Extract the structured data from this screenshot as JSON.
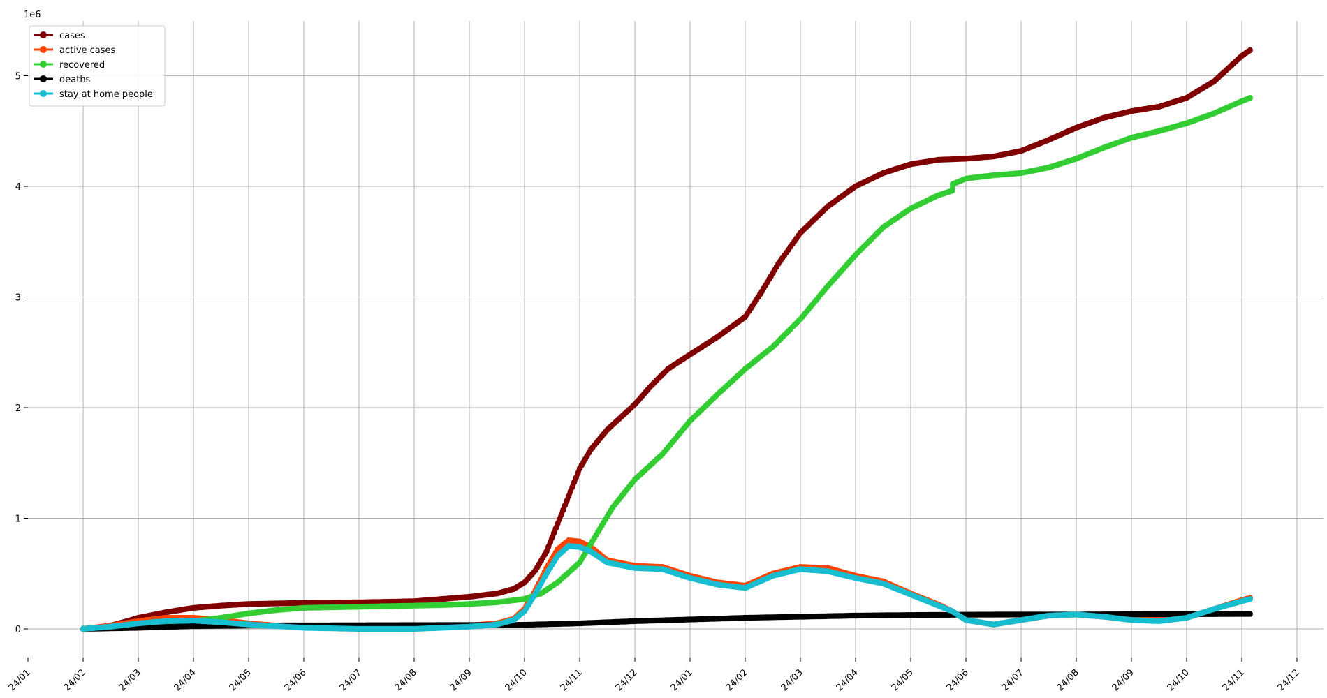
{
  "chart_data": {
    "type": "line",
    "y_offset_label": "1e6",
    "x_tick_labels": [
      "24/01",
      "24/02",
      "24/03",
      "24/04",
      "24/05",
      "24/06",
      "24/07",
      "24/08",
      "24/09",
      "24/10",
      "24/11",
      "24/12",
      "24/01",
      "24/02",
      "24/03",
      "24/04",
      "24/05",
      "24/06",
      "24/07",
      "24/08",
      "24/09",
      "24/10",
      "24/11",
      "24/12"
    ],
    "y_ticks": [
      0,
      1,
      2,
      3,
      4,
      5
    ],
    "ylim": [
      -0.25,
      5.55
    ],
    "grid": true,
    "legend_position": "top-left",
    "series": [
      {
        "name": "cases",
        "color": "#800000",
        "points": [
          [
            1,
            0.0
          ],
          [
            1.2,
            0.01
          ],
          [
            1.5,
            0.03
          ],
          [
            1.8,
            0.07
          ],
          [
            2,
            0.1
          ],
          [
            2.5,
            0.15
          ],
          [
            3,
            0.19
          ],
          [
            3.5,
            0.21
          ],
          [
            4,
            0.225
          ],
          [
            4.5,
            0.23
          ],
          [
            5,
            0.235
          ],
          [
            6,
            0.24
          ],
          [
            7,
            0.25
          ],
          [
            7.5,
            0.27
          ],
          [
            8,
            0.29
          ],
          [
            8.5,
            0.32
          ],
          [
            8.8,
            0.36
          ],
          [
            9,
            0.42
          ],
          [
            9.2,
            0.53
          ],
          [
            9.4,
            0.7
          ],
          [
            9.6,
            0.95
          ],
          [
            9.8,
            1.2
          ],
          [
            10,
            1.45
          ],
          [
            10.2,
            1.62
          ],
          [
            10.5,
            1.8
          ],
          [
            11,
            2.03
          ],
          [
            11.3,
            2.2
          ],
          [
            11.6,
            2.35
          ],
          [
            12,
            2.48
          ],
          [
            12.5,
            2.64
          ],
          [
            13,
            2.82
          ],
          [
            13.3,
            3.05
          ],
          [
            13.6,
            3.3
          ],
          [
            14,
            3.58
          ],
          [
            14.5,
            3.82
          ],
          [
            15,
            4.0
          ],
          [
            15.5,
            4.12
          ],
          [
            16,
            4.2
          ],
          [
            16.5,
            4.24
          ],
          [
            17,
            4.25
          ],
          [
            17.5,
            4.27
          ],
          [
            18,
            4.32
          ],
          [
            18.5,
            4.42
          ],
          [
            19,
            4.53
          ],
          [
            19.5,
            4.62
          ],
          [
            20,
            4.68
          ],
          [
            20.5,
            4.72
          ],
          [
            21,
            4.8
          ],
          [
            21.5,
            4.95
          ],
          [
            22,
            5.18
          ],
          [
            22.15,
            5.23
          ]
        ]
      },
      {
        "name": "active cases",
        "color": "#ff4500",
        "points": [
          [
            1,
            0.0
          ],
          [
            1.5,
            0.03
          ],
          [
            2,
            0.07
          ],
          [
            2.5,
            0.1
          ],
          [
            3,
            0.1
          ],
          [
            3.5,
            0.08
          ],
          [
            4,
            0.05
          ],
          [
            4.5,
            0.03
          ],
          [
            5,
            0.02
          ],
          [
            6,
            0.01
          ],
          [
            7,
            0.01
          ],
          [
            7.5,
            0.02
          ],
          [
            8,
            0.03
          ],
          [
            8.5,
            0.05
          ],
          [
            8.8,
            0.09
          ],
          [
            9,
            0.18
          ],
          [
            9.2,
            0.35
          ],
          [
            9.4,
            0.55
          ],
          [
            9.6,
            0.72
          ],
          [
            9.8,
            0.8
          ],
          [
            10,
            0.79
          ],
          [
            10.2,
            0.74
          ],
          [
            10.5,
            0.62
          ],
          [
            11,
            0.57
          ],
          [
            11.5,
            0.56
          ],
          [
            12,
            0.48
          ],
          [
            12.5,
            0.42
          ],
          [
            13,
            0.39
          ],
          [
            13.5,
            0.5
          ],
          [
            14,
            0.56
          ],
          [
            14.5,
            0.55
          ],
          [
            15,
            0.48
          ],
          [
            15.5,
            0.43
          ],
          [
            16,
            0.32
          ],
          [
            16.5,
            0.22
          ],
          [
            16.75,
            0.16
          ],
          [
            17,
            0.08
          ],
          [
            17.5,
            0.04
          ],
          [
            18,
            0.08
          ],
          [
            18.5,
            0.12
          ],
          [
            19,
            0.13
          ],
          [
            19.5,
            0.11
          ],
          [
            20,
            0.09
          ],
          [
            20.5,
            0.08
          ],
          [
            21,
            0.1
          ],
          [
            21.5,
            0.18
          ],
          [
            22,
            0.26
          ],
          [
            22.15,
            0.28
          ]
        ]
      },
      {
        "name": "recovered",
        "color": "#32cd32",
        "points": [
          [
            1,
            0.0
          ],
          [
            1.5,
            0.02
          ],
          [
            2,
            0.04
          ],
          [
            3,
            0.07
          ],
          [
            3.5,
            0.1
          ],
          [
            4,
            0.14
          ],
          [
            4.5,
            0.17
          ],
          [
            5,
            0.19
          ],
          [
            6,
            0.2
          ],
          [
            7,
            0.21
          ],
          [
            7.5,
            0.215
          ],
          [
            8,
            0.225
          ],
          [
            8.5,
            0.24
          ],
          [
            9,
            0.27
          ],
          [
            9.3,
            0.32
          ],
          [
            9.6,
            0.42
          ],
          [
            10,
            0.6
          ],
          [
            10.3,
            0.85
          ],
          [
            10.6,
            1.1
          ],
          [
            11,
            1.35
          ],
          [
            11.5,
            1.58
          ],
          [
            12,
            1.88
          ],
          [
            12.5,
            2.12
          ],
          [
            13,
            2.35
          ],
          [
            13.5,
            2.55
          ],
          [
            14,
            2.8
          ],
          [
            14.5,
            3.1
          ],
          [
            15,
            3.38
          ],
          [
            15.5,
            3.63
          ],
          [
            16,
            3.8
          ],
          [
            16.5,
            3.92
          ],
          [
            16.75,
            3.96
          ],
          [
            16.76,
            4.02
          ],
          [
            17,
            4.07
          ],
          [
            17.5,
            4.1
          ],
          [
            18,
            4.12
          ],
          [
            18.5,
            4.17
          ],
          [
            19,
            4.25
          ],
          [
            19.5,
            4.35
          ],
          [
            20,
            4.44
          ],
          [
            20.5,
            4.5
          ],
          [
            21,
            4.57
          ],
          [
            21.5,
            4.66
          ],
          [
            22,
            4.77
          ],
          [
            22.15,
            4.8
          ]
        ]
      },
      {
        "name": "deaths",
        "color": "#000000",
        "points": [
          [
            1,
            0.0
          ],
          [
            1.5,
            0.005
          ],
          [
            2,
            0.01
          ],
          [
            3,
            0.025
          ],
          [
            4,
            0.03
          ],
          [
            5,
            0.032
          ],
          [
            6,
            0.033
          ],
          [
            7,
            0.034
          ],
          [
            8,
            0.035
          ],
          [
            9,
            0.037
          ],
          [
            10,
            0.05
          ],
          [
            10.5,
            0.06
          ],
          [
            11,
            0.07
          ],
          [
            12,
            0.085
          ],
          [
            13,
            0.1
          ],
          [
            14,
            0.11
          ],
          [
            15,
            0.12
          ],
          [
            16,
            0.125
          ],
          [
            17,
            0.128
          ],
          [
            18,
            0.13
          ],
          [
            19,
            0.13
          ],
          [
            20,
            0.132
          ],
          [
            21,
            0.133
          ],
          [
            22,
            0.135
          ],
          [
            22.15,
            0.135
          ]
        ]
      },
      {
        "name": "stay at home people",
        "color": "#17becf",
        "points": [
          [
            1,
            0.0
          ],
          [
            1.5,
            0.02
          ],
          [
            2,
            0.05
          ],
          [
            2.5,
            0.07
          ],
          [
            3,
            0.075
          ],
          [
            3.5,
            0.06
          ],
          [
            4,
            0.04
          ],
          [
            4.5,
            0.025
          ],
          [
            5,
            0.01
          ],
          [
            6,
            0.0
          ],
          [
            7,
            0.0
          ],
          [
            7.5,
            0.01
          ],
          [
            8,
            0.02
          ],
          [
            8.5,
            0.04
          ],
          [
            8.8,
            0.08
          ],
          [
            9,
            0.16
          ],
          [
            9.2,
            0.32
          ],
          [
            9.4,
            0.5
          ],
          [
            9.6,
            0.66
          ],
          [
            9.8,
            0.75
          ],
          [
            10,
            0.74
          ],
          [
            10.2,
            0.7
          ],
          [
            10.5,
            0.6
          ],
          [
            11,
            0.55
          ],
          [
            11.5,
            0.54
          ],
          [
            12,
            0.46
          ],
          [
            12.5,
            0.4
          ],
          [
            13,
            0.37
          ],
          [
            13.5,
            0.48
          ],
          [
            14,
            0.54
          ],
          [
            14.5,
            0.52
          ],
          [
            15,
            0.46
          ],
          [
            15.5,
            0.41
          ],
          [
            16,
            0.31
          ],
          [
            16.5,
            0.21
          ],
          [
            16.75,
            0.16
          ],
          [
            17,
            0.08
          ],
          [
            17.5,
            0.04
          ],
          [
            18,
            0.08
          ],
          [
            18.5,
            0.12
          ],
          [
            19,
            0.13
          ],
          [
            19.5,
            0.11
          ],
          [
            20,
            0.08
          ],
          [
            20.5,
            0.07
          ],
          [
            21,
            0.1
          ],
          [
            21.5,
            0.18
          ],
          [
            22,
            0.25
          ],
          [
            22.15,
            0.27
          ]
        ]
      }
    ]
  }
}
